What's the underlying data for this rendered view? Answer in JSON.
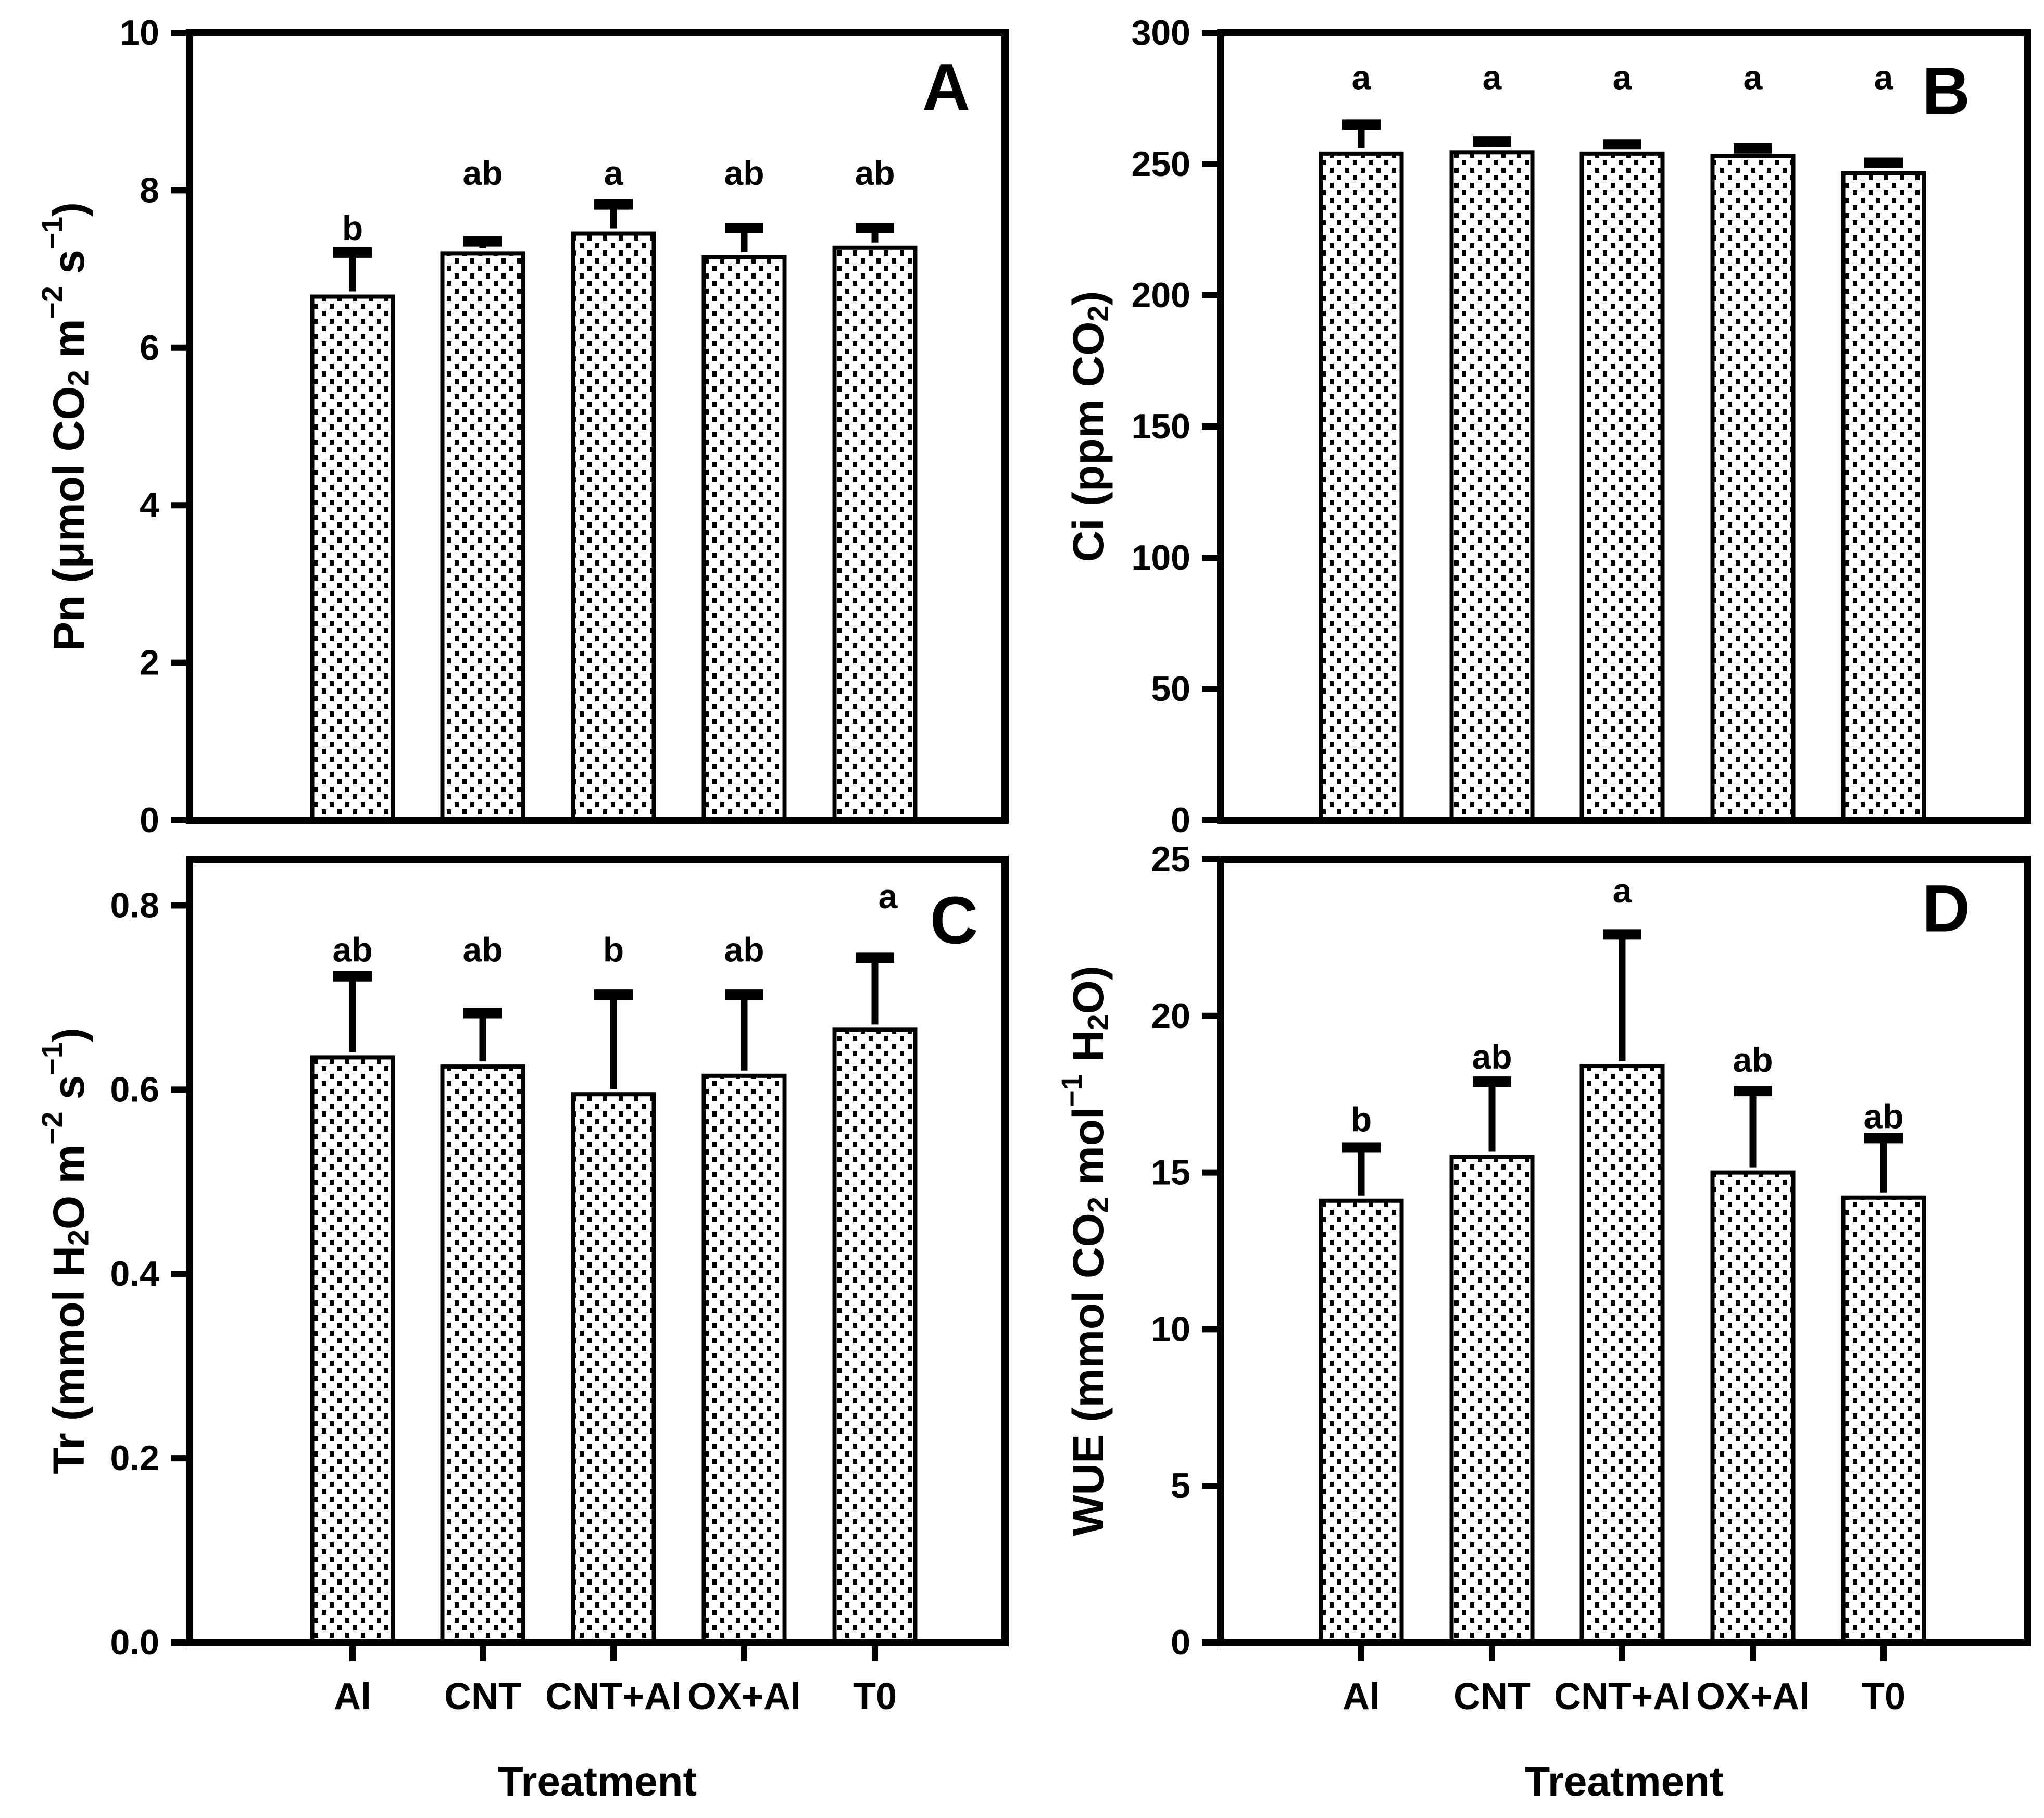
{
  "figure": {
    "background": "#ffffff",
    "ink": "#000000",
    "bar_fill_style": "white-with-black-stipple-dots",
    "xlabel": "Treatment",
    "categories": [
      "Al",
      "CNT",
      "CNT+Al",
      "OX+Al",
      "T0"
    ]
  },
  "chart_data": [
    {
      "type": "bar",
      "panel_letter": "A",
      "ylabel_segments": [
        {
          "t": "Pn (μmol CO"
        },
        {
          "t": "2",
          "style": "sub"
        },
        {
          "t": " m"
        },
        {
          "t": "−2",
          "style": "sup"
        },
        {
          "t": " s"
        },
        {
          "t": "−1",
          "style": "sup"
        },
        {
          "t": ")"
        }
      ],
      "ylim": [
        0,
        10
      ],
      "yticks": [
        0,
        2,
        4,
        6,
        8,
        10
      ],
      "ytick_labels": [
        "0",
        "2",
        "4",
        "6",
        "8",
        "10"
      ],
      "categories": [
        "Al",
        "CNT",
        "CNT+Al",
        "OX+Al",
        "T0"
      ],
      "values": [
        6.65,
        7.2,
        7.45,
        7.15,
        7.27
      ],
      "errors": [
        0.56,
        0.15,
        0.37,
        0.37,
        0.25
      ],
      "sig_letters": [
        "b",
        "ab",
        "a",
        "ab",
        "ab"
      ],
      "sig_letter_y": [
        7.52,
        8.22,
        8.22,
        8.22,
        8.22
      ],
      "show_xtick_labels": false,
      "grid": false,
      "legend": "none"
    },
    {
      "type": "bar",
      "panel_letter": "B",
      "ylabel_segments": [
        {
          "t": "Ci (ppm CO"
        },
        {
          "t": "2",
          "style": "sub"
        },
        {
          "t": ")"
        }
      ],
      "ylim": [
        0,
        300
      ],
      "yticks": [
        0,
        50,
        100,
        150,
        200,
        250,
        300
      ],
      "ytick_labels": [
        "0",
        "50",
        "100",
        "150",
        "200",
        "250",
        "300"
      ],
      "categories": [
        "Al",
        "CNT",
        "CNT+Al",
        "OX+Al",
        "T0"
      ],
      "values": [
        254,
        254.5,
        254,
        253,
        246.5
      ],
      "errors": [
        11,
        4,
        3.5,
        3,
        4
      ],
      "sig_letters": [
        "a",
        "a",
        "a",
        "a",
        "a"
      ],
      "sig_letter_y": [
        283,
        283,
        283,
        283,
        283
      ],
      "show_xtick_labels": false,
      "grid": false,
      "legend": "none"
    },
    {
      "type": "bar",
      "panel_letter": "C",
      "ylabel_segments": [
        {
          "t": "Tr (mmol H"
        },
        {
          "t": "2",
          "style": "sub"
        },
        {
          "t": "O m"
        },
        {
          "t": "−2",
          "style": "sup"
        },
        {
          "t": " s"
        },
        {
          "t": "−1",
          "style": "sup"
        },
        {
          "t": ")"
        }
      ],
      "ylim": [
        0,
        0.85
      ],
      "yticks": [
        0,
        0.2,
        0.4,
        0.6,
        0.8
      ],
      "ytick_labels": [
        "0.0",
        "0.2",
        "0.4",
        "0.6",
        "0.8"
      ],
      "categories": [
        "Al",
        "CNT",
        "CNT+Al",
        "OX+Al",
        "T0"
      ],
      "values": [
        0.635,
        0.625,
        0.595,
        0.615,
        0.665
      ],
      "errors": [
        0.088,
        0.058,
        0.108,
        0.088,
        0.078
      ],
      "sig_letters": [
        "ab",
        "ab",
        "b",
        "ab",
        "a"
      ],
      "sig_letter_y": [
        0.752,
        0.752,
        0.752,
        0.752,
        0.81
      ],
      "sig_letter_dx": [
        0,
        0,
        0,
        0,
        25
      ],
      "show_xtick_labels": true,
      "xlabel": "Treatment",
      "grid": false,
      "legend": "none"
    },
    {
      "type": "bar",
      "panel_letter": "D",
      "ylabel_segments": [
        {
          "t": "WUE (mmol CO"
        },
        {
          "t": "2",
          "style": "sub"
        },
        {
          "t": " mol"
        },
        {
          "t": "−1",
          "style": "sup"
        },
        {
          "t": " H"
        },
        {
          "t": "2",
          "style": "sub"
        },
        {
          "t": "O)"
        }
      ],
      "ylim": [
        0,
        25
      ],
      "yticks": [
        0,
        5,
        10,
        15,
        20,
        25
      ],
      "ytick_labels": [
        "0",
        "5",
        "10",
        "15",
        "20",
        "25"
      ],
      "categories": [
        "Al",
        "CNT",
        "CNT+Al",
        "OX+Al",
        "T0"
      ],
      "values": [
        14.1,
        15.5,
        18.4,
        15.0,
        14.2
      ],
      "errors": [
        1.7,
        2.4,
        4.2,
        2.6,
        1.9
      ],
      "sig_letters": [
        "b",
        "ab",
        "a",
        "ab",
        "ab"
      ],
      "sig_letter_y": [
        16.7,
        18.7,
        24.0,
        18.6,
        16.8
      ],
      "show_xtick_labels": true,
      "xlabel": "Treatment",
      "grid": false,
      "legend": "none"
    }
  ]
}
